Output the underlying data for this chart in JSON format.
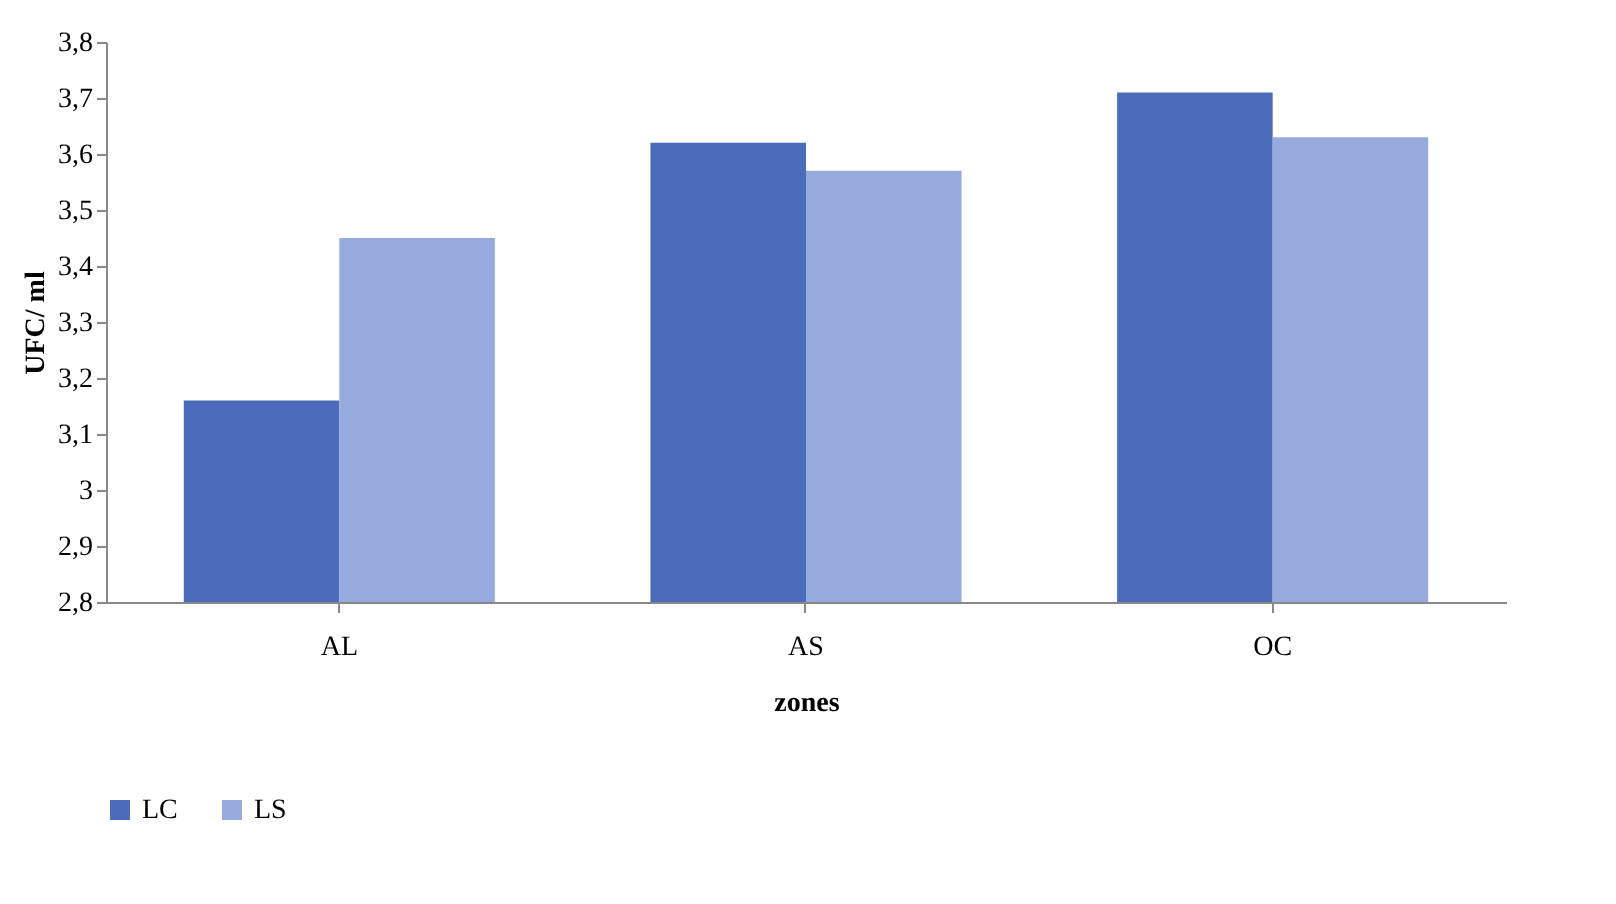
{
  "chart_data": {
    "type": "bar",
    "xlabel": "zones",
    "ylabel": "UFC/ ml",
    "categories": [
      "AL",
      "AS",
      "OC"
    ],
    "series": [
      {
        "name": "LC",
        "color": "#4a6cba",
        "values": [
          3.16,
          3.62,
          3.71
        ]
      },
      {
        "name": "LS",
        "color": "#97aadd",
        "values": [
          3.45,
          3.57,
          3.63
        ]
      }
    ],
    "ylim": [
      2.8,
      3.8
    ],
    "yticks": [
      {
        "value": 2.8,
        "label": "2,8"
      },
      {
        "value": 2.9,
        "label": "2,9"
      },
      3,
      {
        "value": 3.1,
        "label": "3,1"
      },
      {
        "value": 3.2,
        "label": "3,2"
      },
      {
        "value": 3.3,
        "label": "3,3"
      },
      {
        "value": 3.4,
        "label": "3,4"
      },
      {
        "value": 3.5,
        "label": "3,5"
      },
      {
        "value": 3.6,
        "label": "3,6"
      },
      {
        "value": 3.7,
        "label": "3,7"
      },
      {
        "value": 3.8,
        "label": "3,8"
      }
    ],
    "grid": false,
    "legend": "bottom"
  }
}
